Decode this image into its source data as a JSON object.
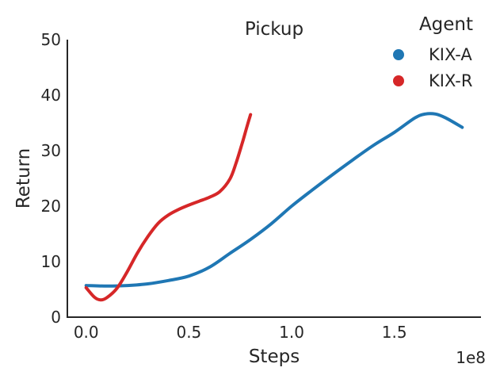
{
  "chart_data": {
    "type": "line",
    "title": "Pickup",
    "xlabel": "Steps",
    "ylabel": "Return",
    "x_offset_label": "1e8",
    "xlim": [
      -0.0915,
      1.9215
    ],
    "ylim": [
      0,
      50
    ],
    "xticks": [
      0.0,
      0.5,
      1.0,
      1.5
    ],
    "xtick_labels": [
      "0.0",
      "0.5",
      "1.0",
      "1.5"
    ],
    "yticks": [
      0,
      10,
      20,
      30,
      40,
      50
    ],
    "ytick_labels": [
      "0",
      "10",
      "20",
      "30",
      "40",
      "50"
    ],
    "grid": false,
    "legend": {
      "title": "Agent",
      "position": "upper right",
      "entries": [
        {
          "label": "KIX-A",
          "color": "#1f77b4"
        },
        {
          "label": "KIX-R",
          "color": "#d62728"
        }
      ]
    },
    "colors": {
      "text": "#262626",
      "spine": "#262626",
      "background": "#ffffff"
    },
    "series": [
      {
        "name": "KIX-A",
        "color": "#1f77b4",
        "x": [
          0.0,
          0.1,
          0.2,
          0.3,
          0.4,
          0.5,
          0.6,
          0.7,
          0.8,
          0.9,
          1.0,
          1.1,
          1.2,
          1.3,
          1.4,
          1.5,
          1.6,
          1.65,
          1.7,
          1.75,
          1.83
        ],
        "y": [
          5.7,
          5.6,
          5.7,
          6.0,
          6.6,
          7.4,
          9.0,
          11.5,
          14.0,
          16.8,
          20.0,
          22.9,
          25.7,
          28.4,
          31.0,
          33.3,
          35.9,
          36.6,
          36.6,
          35.9,
          34.2
        ]
      },
      {
        "name": "KIX-R",
        "color": "#d62728",
        "x": [
          0.0,
          0.04,
          0.07,
          0.1,
          0.15,
          0.2,
          0.25,
          0.3,
          0.35,
          0.4,
          0.45,
          0.5,
          0.55,
          0.6,
          0.65,
          0.7,
          0.73,
          0.76,
          0.78,
          0.8
        ],
        "y": [
          5.3,
          3.6,
          3.1,
          3.5,
          5.2,
          8.2,
          11.6,
          14.5,
          16.9,
          18.4,
          19.4,
          20.2,
          20.9,
          21.6,
          22.6,
          24.9,
          27.8,
          31.4,
          34.0,
          36.5
        ]
      }
    ]
  }
}
